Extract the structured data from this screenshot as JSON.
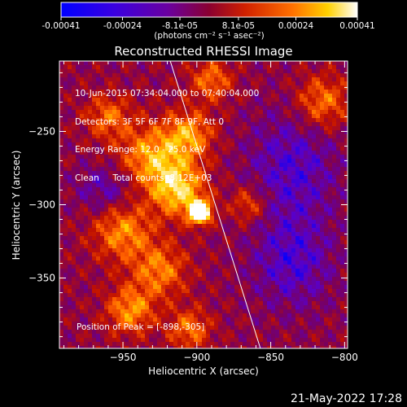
{
  "chart_data": {
    "type": "heatmap",
    "title": "Reconstructed RHESSI Image",
    "xlabel": "Heliocentric X (arcsec)",
    "ylabel": "Heliocentric Y (arcsec)",
    "xlim": [
      -993,
      -798
    ],
    "ylim": [
      -398,
      -202
    ],
    "x_ticks": [
      -950,
      -900,
      -850,
      -800
    ],
    "x_tick_labels": [
      "−950",
      "−900",
      "−850",
      "−800"
    ],
    "y_ticks": [
      -350,
      -300,
      -250
    ],
    "y_tick_labels": [
      "−350",
      "−300",
      "−250"
    ],
    "colorbar": {
      "ticks": [
        -0.00041,
        -0.00024,
        -8.1e-05,
        8.1e-05,
        0.00024,
        0.00041
      ],
      "tick_labels": [
        "-0.00041",
        "-0.00024",
        "-8.1e-05",
        "8.1e-05",
        "0.00024",
        "0.00041"
      ],
      "unit_label": "(photons cm⁻² s⁻¹ asec⁻²)",
      "colors": [
        "#0000ff",
        "#5a00c8",
        "#7a005a",
        "#c01000",
        "#ff6000",
        "#ffd000",
        "#ffffff"
      ]
    },
    "peak": {
      "x": -898,
      "y": -305
    },
    "limb_line": {
      "x": [
        -918,
        -857
      ],
      "y": [
        -202,
        -398
      ]
    },
    "overlay_text": [
      "10-Jun-2015 07:34:04.000 to 07:40:04.000",
      "Detectors: 3F 5F 6F 7F 8F 9F, Att 0",
      "Energy Range: 12.0 - 25.0 keV",
      "Clean     Total counts: 8.12E+03"
    ],
    "peak_text": "Position of Peak = [-898,-305]"
  },
  "footer": {
    "date": "21-May-2022 17:28"
  },
  "colors": {
    "background": "#000000",
    "foreground": "#ffffff"
  }
}
